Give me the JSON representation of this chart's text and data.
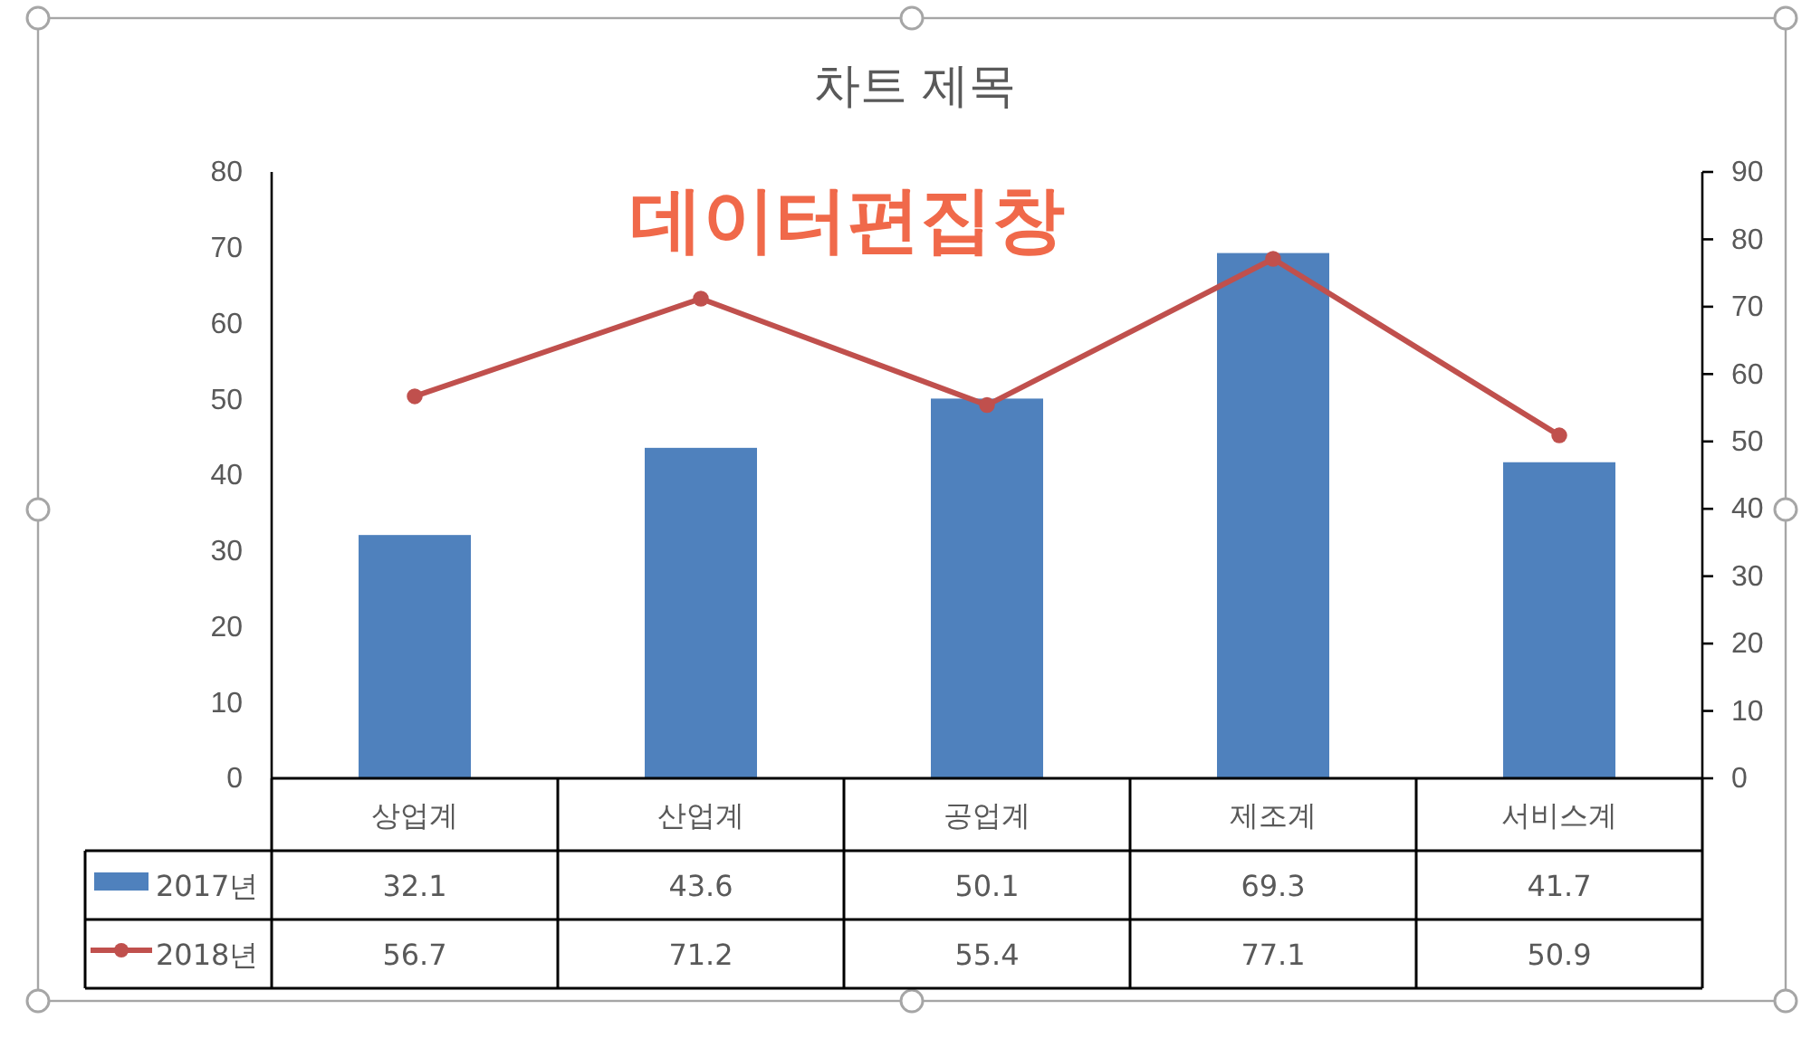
{
  "chart_data": {
    "type": "bar",
    "title": "차트 제목",
    "categories": [
      "상업계",
      "산업계",
      "공업계",
      "제조계",
      "서비스계"
    ],
    "series": [
      {
        "name": "2017년",
        "color": "#4f81bd",
        "values": [
          32.1,
          43.6,
          50.1,
          69.3,
          41.7
        ]
      },
      {
        "name": "2018년",
        "type": "line",
        "axis": "y2",
        "color": "#c0504d",
        "values": [
          56.7,
          71.2,
          55.4,
          77.1,
          50.9
        ]
      }
    ],
    "ylim": [
      0,
      80
    ],
    "yticks": [
      0,
      10,
      20,
      30,
      40,
      50,
      60,
      70,
      80
    ],
    "y2lim": [
      0,
      90
    ],
    "y2ticks": [
      0,
      10,
      20,
      30,
      40,
      50,
      60,
      70,
      80,
      90
    ],
    "grid": false,
    "legend": "bottom",
    "data_labels": true,
    "marker": "circle",
    "line_style": "solid",
    "annotations": [
      "데이터편집창"
    ]
  }
}
